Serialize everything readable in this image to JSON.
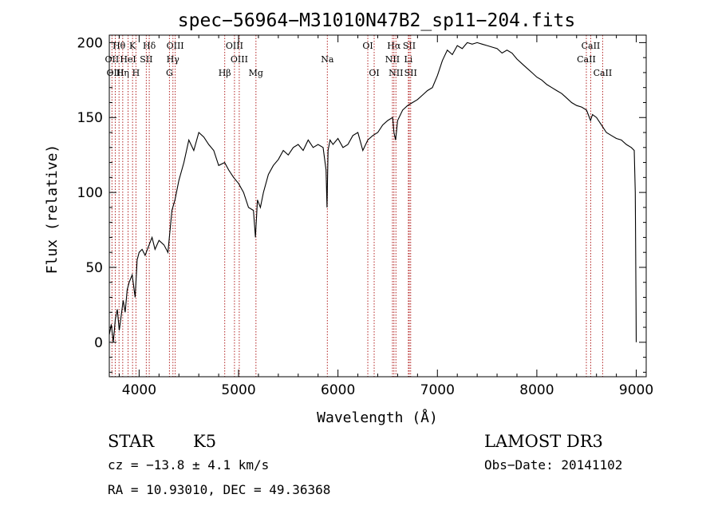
{
  "chart_data": {
    "type": "line",
    "title": "spec−56964−M31010N47B2_sp11−204.fits",
    "xlabel": "Wavelength (Å)",
    "ylabel": "Flux (relative)",
    "xlim": [
      3700,
      9100
    ],
    "ylim": [
      -23,
      205
    ],
    "xticks": [
      4000,
      5000,
      6000,
      7000,
      8000,
      9000
    ],
    "yticks": [
      0,
      50,
      100,
      150,
      200
    ],
    "series": [
      {
        "name": "flux",
        "x": [
          3700,
          3720,
          3740,
          3760,
          3780,
          3800,
          3820,
          3840,
          3860,
          3880,
          3900,
          3930,
          3960,
          3980,
          4000,
          4030,
          4060,
          4100,
          4130,
          4160,
          4200,
          4250,
          4290,
          4330,
          4360,
          4400,
          4450,
          4500,
          4550,
          4600,
          4650,
          4700,
          4750,
          4800,
          4860,
          4900,
          4950,
          5000,
          5050,
          5100,
          5150,
          5170,
          5190,
          5220,
          5250,
          5300,
          5350,
          5400,
          5450,
          5500,
          5550,
          5600,
          5650,
          5700,
          5750,
          5800,
          5850,
          5880,
          5890,
          5900,
          5920,
          5950,
          6000,
          6050,
          6100,
          6150,
          6200,
          6250,
          6300,
          6350,
          6400,
          6450,
          6500,
          6550,
          6563,
          6580,
          6600,
          6650,
          6700,
          6750,
          6800,
          6850,
          6900,
          6950,
          7000,
          7050,
          7100,
          7150,
          7200,
          7250,
          7300,
          7350,
          7400,
          7450,
          7500,
          7550,
          7600,
          7650,
          7700,
          7750,
          7800,
          7850,
          7900,
          7950,
          8000,
          8050,
          8100,
          8150,
          8200,
          8250,
          8300,
          8350,
          8400,
          8450,
          8500,
          8540,
          8560,
          8600,
          8650,
          8700,
          8750,
          8800,
          8850,
          8900,
          8950,
          8980,
          8990,
          8998,
          9000
        ],
        "values": [
          5,
          12,
          0,
          15,
          22,
          8,
          18,
          28,
          20,
          35,
          40,
          45,
          30,
          55,
          60,
          62,
          58,
          65,
          70,
          62,
          68,
          65,
          60,
          88,
          95,
          108,
          120,
          135,
          128,
          140,
          137,
          132,
          128,
          118,
          120,
          115,
          110,
          106,
          100,
          90,
          88,
          70,
          95,
          90,
          100,
          112,
          118,
          122,
          128,
          125,
          130,
          132,
          128,
          135,
          130,
          132,
          130,
          115,
          90,
          128,
          135,
          132,
          136,
          130,
          132,
          138,
          140,
          128,
          135,
          138,
          140,
          145,
          148,
          150,
          140,
          135,
          148,
          155,
          158,
          160,
          162,
          165,
          168,
          170,
          178,
          188,
          195,
          192,
          198,
          196,
          200,
          199,
          200,
          199,
          198,
          197,
          196,
          193,
          195,
          193,
          189,
          186,
          183,
          180,
          177,
          175,
          172,
          170,
          168,
          166,
          163,
          160,
          158,
          157,
          155,
          148,
          152,
          150,
          145,
          140,
          138,
          136,
          135,
          132,
          130,
          128,
          100,
          20,
          0
        ]
      }
    ],
    "emission_lines": [
      {
        "label": "Hθ",
        "wavelength": 3798,
        "row": 1
      },
      {
        "label": "K",
        "wavelength": 3934,
        "row": 1
      },
      {
        "label": "Hδ",
        "wavelength": 4102,
        "row": 1
      },
      {
        "label": "OIII",
        "wavelength": 4363,
        "row": 1
      },
      {
        "label": "OIII",
        "wavelength": 4959,
        "row": 1
      },
      {
        "label": "OI",
        "wavelength": 6300,
        "row": 1
      },
      {
        "label": "Hα",
        "wavelength": 6563,
        "row": 1
      },
      {
        "label": "SII",
        "wavelength": 6717,
        "row": 1
      },
      {
        "label": "CaII",
        "wavelength": 8542,
        "row": 1
      },
      {
        "label": "OII",
        "wavelength": 3727,
        "row": 2
      },
      {
        "label": "HeI",
        "wavelength": 3889,
        "row": 2
      },
      {
        "label": "SII",
        "wavelength": 4072,
        "row": 2
      },
      {
        "label": "Hγ",
        "wavelength": 4340,
        "row": 2
      },
      {
        "label": "OIII",
        "wavelength": 5007,
        "row": 2
      },
      {
        "label": "Na",
        "wavelength": 5893,
        "row": 2
      },
      {
        "label": "NII",
        "wavelength": 6548,
        "row": 2
      },
      {
        "label": "Li",
        "wavelength": 6708,
        "row": 2
      },
      {
        "label": "CaII",
        "wavelength": 8498,
        "row": 2
      },
      {
        "label": "OIII",
        "wavelength": 3760,
        "row": 3
      },
      {
        "label": "Hη",
        "wavelength": 3835,
        "row": 3
      },
      {
        "label": "H",
        "wavelength": 3968,
        "row": 3
      },
      {
        "label": "G",
        "wavelength": 4305,
        "row": 3
      },
      {
        "label": "Hβ",
        "wavelength": 4861,
        "row": 3
      },
      {
        "label": "Mg",
        "wavelength": 5175,
        "row": 3
      },
      {
        "label": "OI",
        "wavelength": 6364,
        "row": 3
      },
      {
        "label": "NII",
        "wavelength": 6583,
        "row": 3
      },
      {
        "label": "SII",
        "wavelength": 6731,
        "row": 3
      },
      {
        "label": "CaII",
        "wavelength": 8662,
        "row": 3
      }
    ]
  },
  "info": {
    "object_class": "STAR",
    "subclass": "K5",
    "survey": "LAMOST DR3",
    "redshift": "cz = −13.8 ± 4.1 km/s",
    "obs_date": "Obs−Date: 20141102",
    "coords": "RA =  10.93010, DEC =  49.36368"
  }
}
